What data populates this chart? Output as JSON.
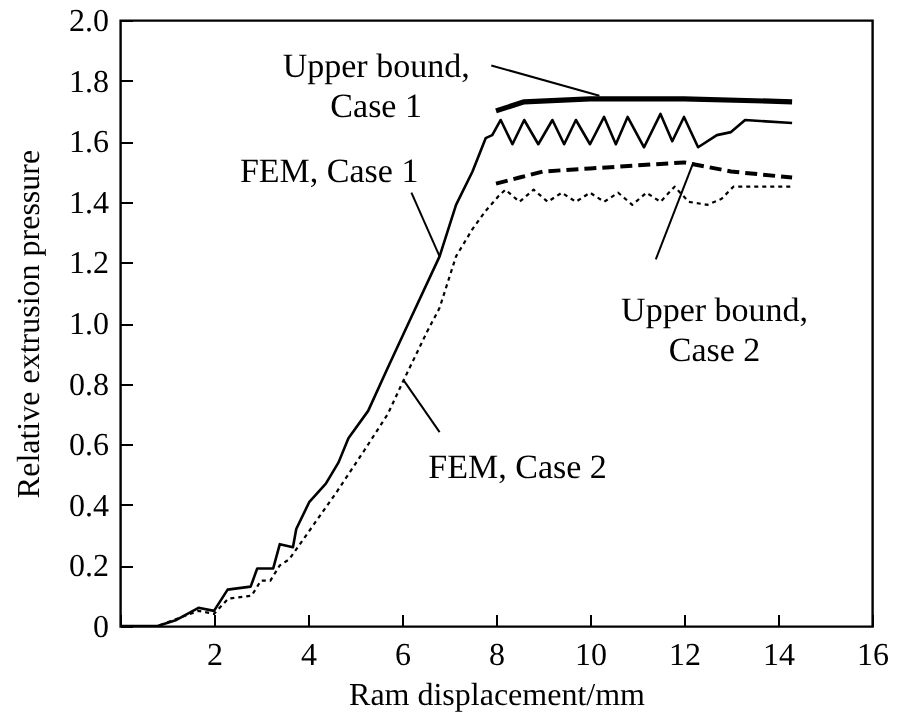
{
  "chart_data": {
    "type": "line",
    "xlabel": "Ram displacement/mm",
    "ylabel": "Relative extrusion pressure",
    "xlim": [
      0,
      16
    ],
    "xticks": [
      {
        "value": 0,
        "label": null
      },
      2,
      4,
      6,
      8,
      10,
      12,
      14,
      16
    ],
    "ylim": [
      0,
      2
    ],
    "yticks": [
      0,
      0.2,
      0.4,
      0.6,
      0.8,
      {
        "value": 1,
        "label": "1.0"
      },
      1.2,
      1.4,
      1.6,
      1.8,
      {
        "value": 2,
        "label": "2.0"
      }
    ],
    "grid": false,
    "marker": "none",
    "series": [
      {
        "color": "#000000",
        "line_style": "solid",
        "x": [
          8.0,
          8.6,
          10.0,
          12.0,
          14.3
        ],
        "values": [
          1.7,
          1.73,
          1.74,
          1.74,
          1.73
        ]
      },
      {
        "color": "#000000",
        "line_style": "solid",
        "x": [
          0,
          0.8,
          1.2,
          1.67,
          2.0,
          2.29,
          2.78,
          2.92,
          3.26,
          3.4,
          3.68,
          3.75,
          4.03,
          4.38,
          4.65,
          4.86,
          5.28,
          5.69,
          6.11,
          6.8,
          7.15,
          7.5,
          7.78,
          7.92,
          8.1,
          8.35,
          8.6,
          8.9,
          9.2,
          9.45,
          9.7,
          10.0,
          10.3,
          10.55,
          10.8,
          11.15,
          11.5,
          11.75,
          12.0,
          12.3,
          12.7,
          13.0,
          13.3,
          14.3
        ],
        "values": [
          0,
          0,
          0.02,
          0.06,
          0.05,
          0.12,
          0.13,
          0.19,
          0.19,
          0.27,
          0.26,
          0.32,
          0.41,
          0.47,
          0.54,
          0.62,
          0.71,
          0.85,
          0.99,
          1.22,
          1.39,
          1.5,
          1.61,
          1.62,
          1.67,
          1.59,
          1.67,
          1.59,
          1.67,
          1.59,
          1.67,
          1.59,
          1.68,
          1.59,
          1.68,
          1.58,
          1.69,
          1.6,
          1.68,
          1.58,
          1.62,
          1.63,
          1.67,
          1.66
        ]
      },
      {
        "color": "#000000",
        "line_style": "dashed",
        "x": [
          8.0,
          8.5,
          9.0,
          10.0,
          11.0,
          12.0,
          13.0,
          14.3
        ],
        "values": [
          1.46,
          1.48,
          1.5,
          1.51,
          1.52,
          1.53,
          1.5,
          1.48
        ]
      },
      {
        "color": "#000000",
        "line_style": "dotted",
        "x": [
          0,
          0.8,
          1.67,
          2.0,
          2.3,
          2.8,
          3.0,
          3.2,
          3.4,
          3.6,
          4.1,
          4.6,
          5.2,
          5.7,
          6.0,
          6.53,
          6.8,
          7.15,
          7.5,
          7.78,
          8.06,
          8.2,
          8.5,
          8.8,
          9.1,
          9.4,
          9.7,
          10.0,
          10.3,
          10.6,
          10.9,
          11.2,
          11.5,
          11.8,
          12.1,
          12.5,
          12.8,
          13.05,
          14.3
        ],
        "values": [
          0,
          0,
          0.05,
          0.04,
          0.09,
          0.1,
          0.15,
          0.15,
          0.2,
          0.22,
          0.33,
          0.44,
          0.58,
          0.7,
          0.8,
          0.97,
          1.05,
          1.22,
          1.31,
          1.37,
          1.42,
          1.44,
          1.4,
          1.44,
          1.4,
          1.43,
          1.4,
          1.43,
          1.4,
          1.43,
          1.39,
          1.43,
          1.4,
          1.45,
          1.4,
          1.39,
          1.41,
          1.45,
          1.45
        ]
      }
    ],
    "annotations": [
      {
        "text": "Upper bound, Case 1",
        "x": 10.2,
        "y": 1.75
      },
      {
        "text": "FEM, Case 1",
        "x": 6.8,
        "y": 1.22
      },
      {
        "text": "Upper bound, Case 2",
        "x": 12.2,
        "y": 1.53
      },
      {
        "text": "FEM, Case 2",
        "x": 6.04,
        "y": 0.81
      }
    ]
  }
}
